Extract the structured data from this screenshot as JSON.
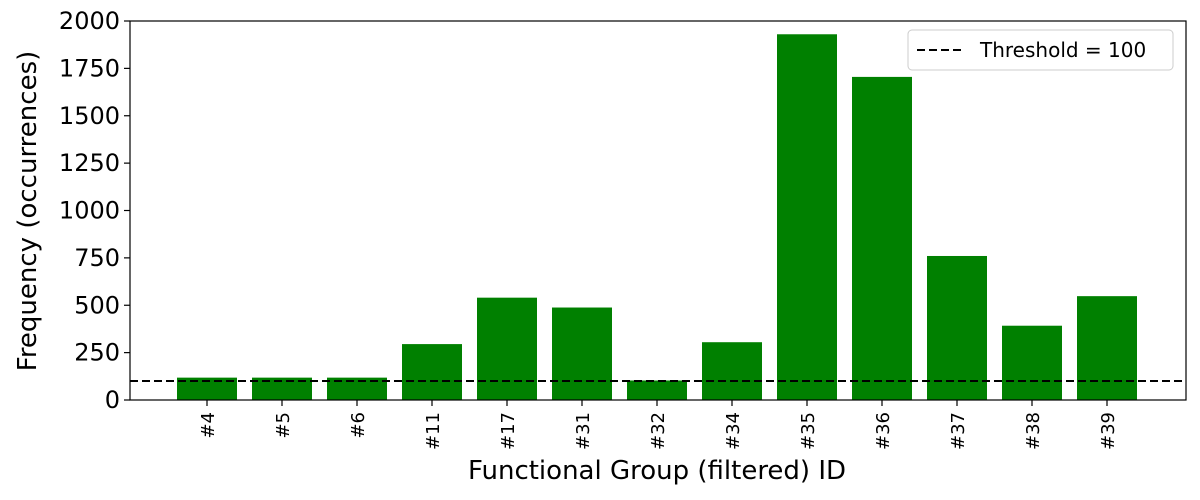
{
  "chart_data": {
    "type": "bar",
    "title": "",
    "xlabel": "Functional Group (filtered) ID",
    "ylabel": "Frequency (occurrences)",
    "categories": [
      "#4",
      "#5",
      "#6",
      "#11",
      "#17",
      "#31",
      "#32",
      "#34",
      "#35",
      "#36",
      "#37",
      "#38",
      "#39"
    ],
    "values": [
      118,
      118,
      118,
      295,
      540,
      488,
      103,
      305,
      1930,
      1705,
      760,
      392,
      548
    ],
    "ylim": [
      0,
      2000
    ],
    "yticks": [
      0,
      250,
      500,
      750,
      1000,
      1250,
      1500,
      1750,
      2000
    ],
    "bar_color": "#008000",
    "threshold": {
      "value": 100,
      "label": "Threshold = 100",
      "color": "#000000",
      "style": "dashed"
    },
    "legend_position": "top-right",
    "grid": false
  }
}
